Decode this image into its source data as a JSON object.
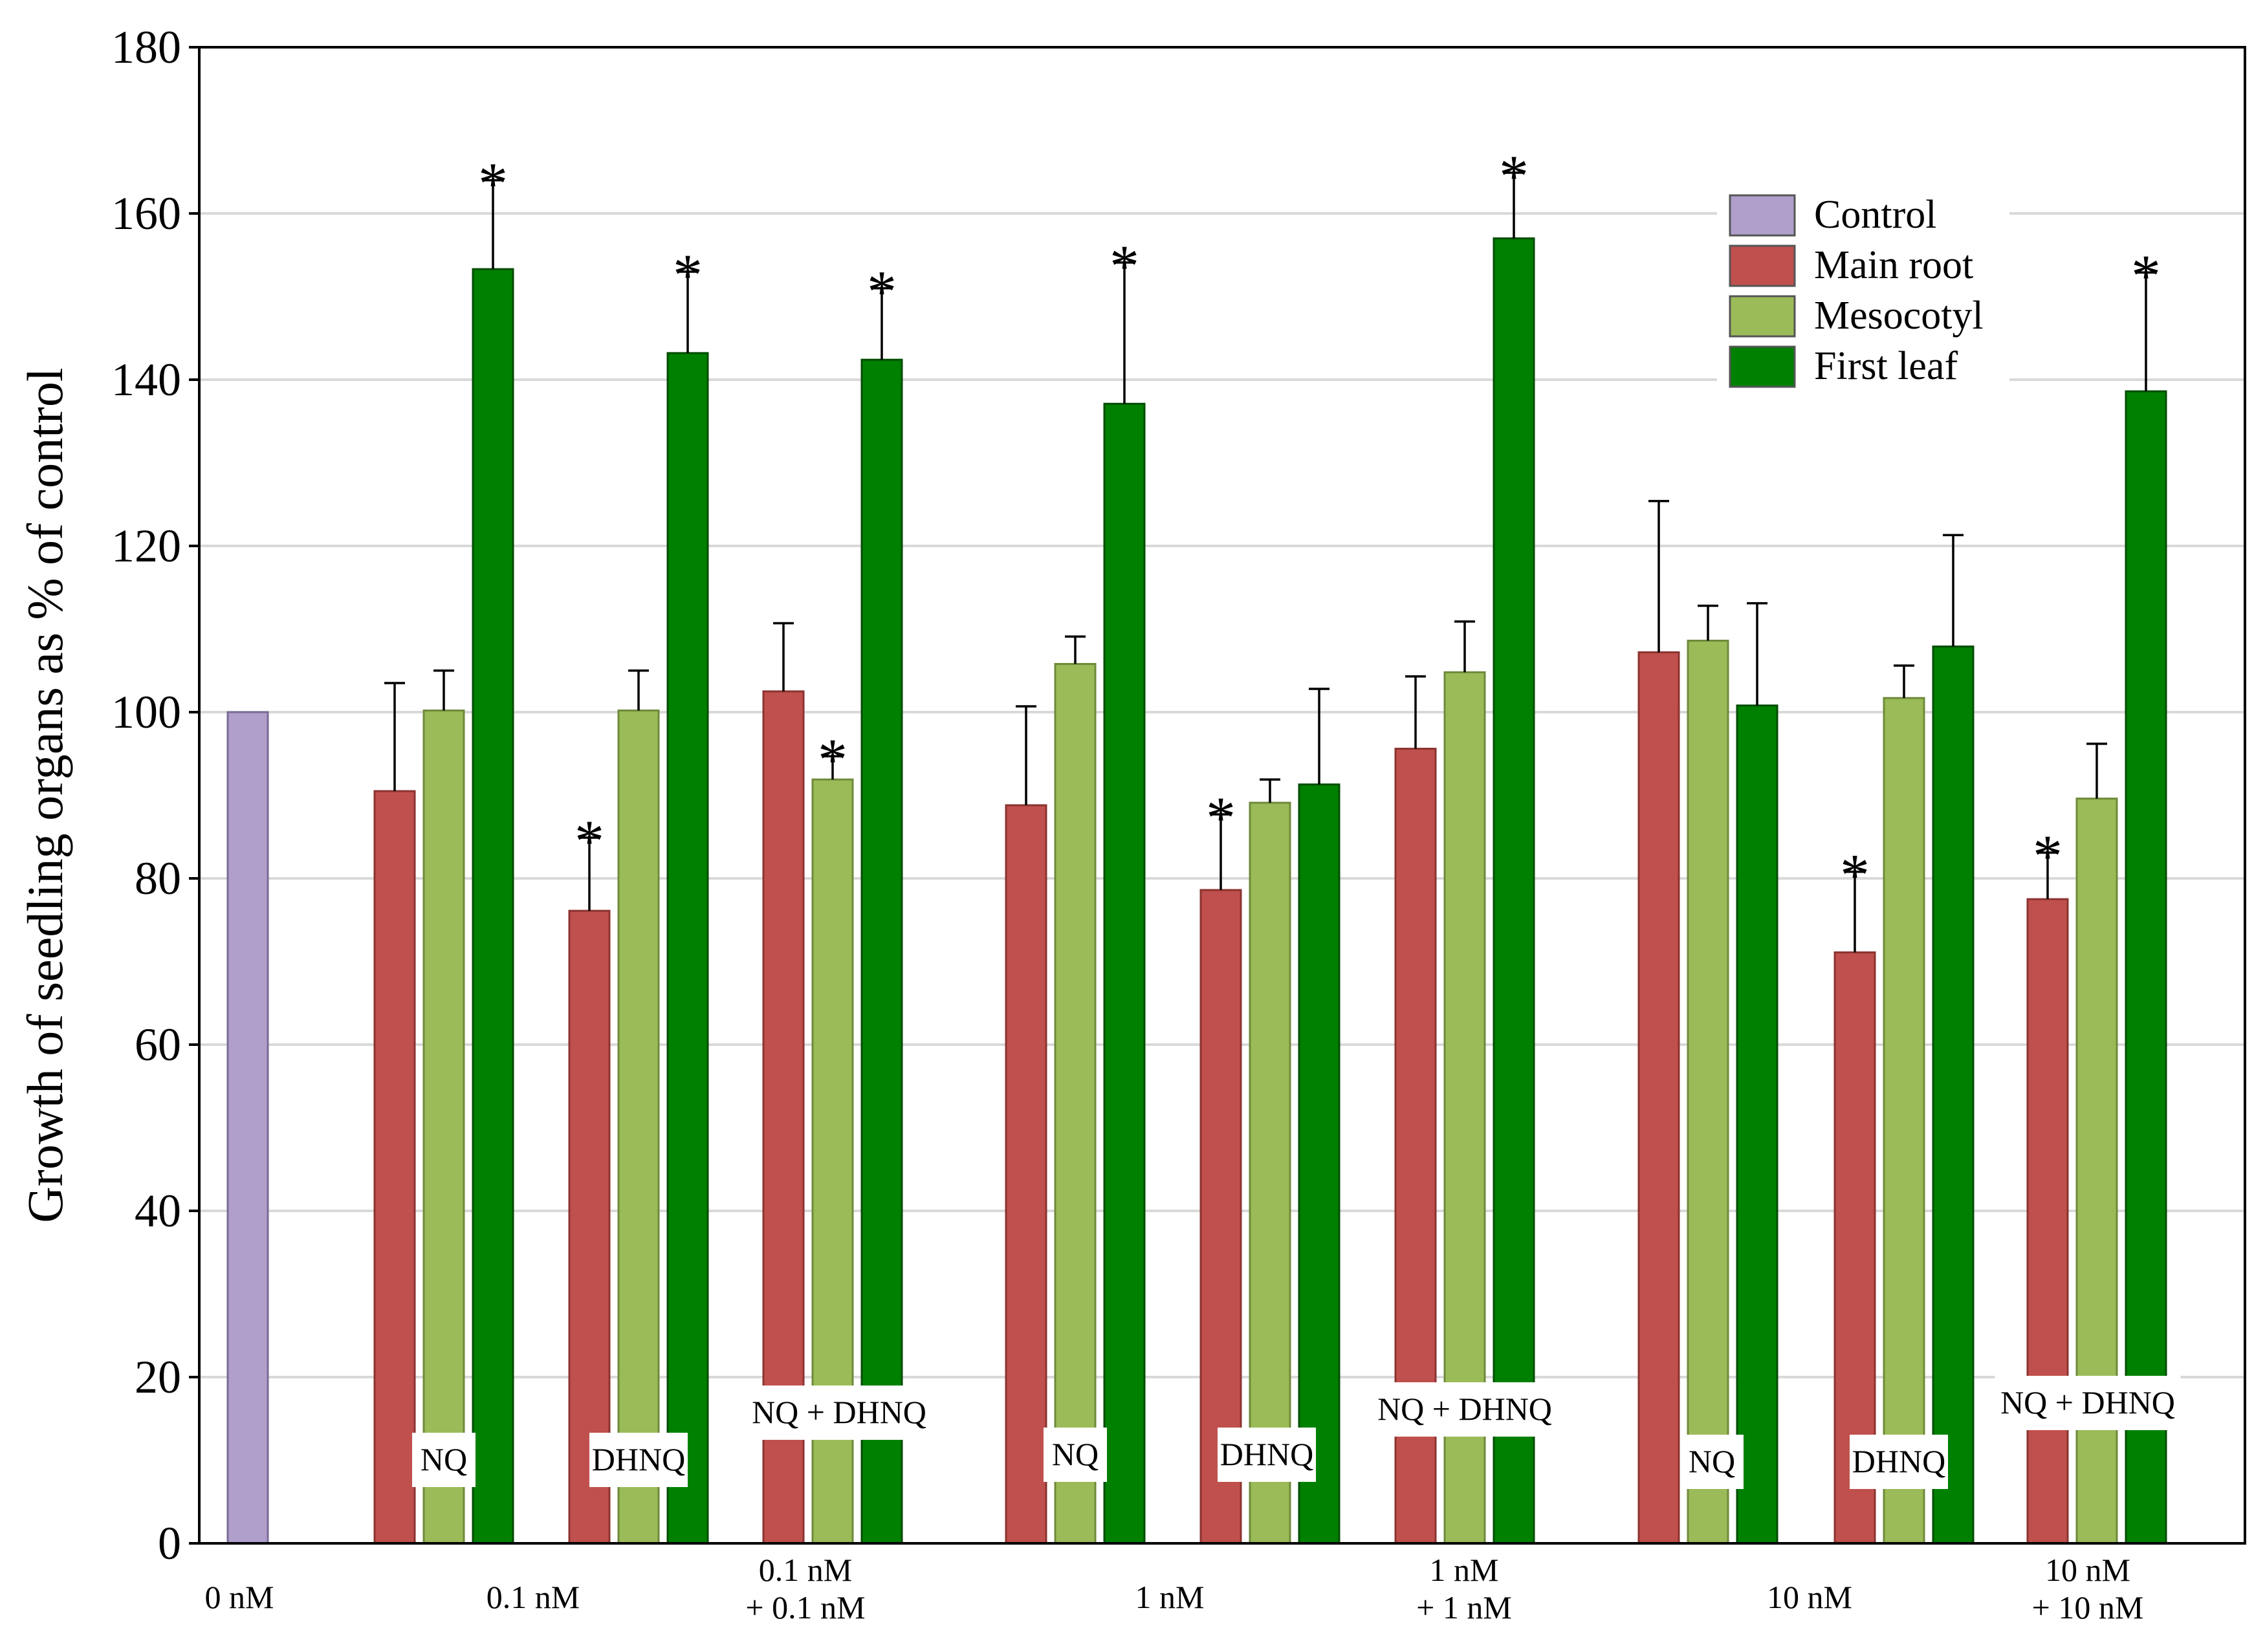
{
  "chart_data": {
    "type": "bar",
    "title": "",
    "xlabel": "",
    "ylabel": "Growth of seedling organs as % of control",
    "ylim": [
      0,
      180
    ],
    "yticks": [
      "0",
      "20",
      "40",
      "60",
      "80",
      "100",
      "120",
      "140",
      "160",
      "180"
    ],
    "grid": true,
    "legend_position": "top-right",
    "colors": {
      "Control": "#b09fcb",
      "Main root": "#c0504d",
      "Mesocotyl": "#9bbb59",
      "First leaf": "#008000"
    },
    "series_names": [
      "Control",
      "Main root",
      "Mesocotyl",
      "First leaf"
    ],
    "groups": [
      {
        "treatment": "",
        "concentration": [
          "0 nM"
        ],
        "bars": [
          {
            "series": "Control",
            "value": 100,
            "error": 0,
            "sig": false
          }
        ]
      },
      {
        "treatment": "NQ",
        "concentration": [
          "0.1 nM"
        ],
        "bars": [
          {
            "series": "Main root",
            "value": 90.5,
            "error": 13,
            "sig": false
          },
          {
            "series": "Mesocotyl",
            "value": 100.2,
            "error": 4.8,
            "sig": false
          },
          {
            "series": "First leaf",
            "value": 153.3,
            "error": 10.7,
            "sig": true
          }
        ]
      },
      {
        "treatment": "DHNQ",
        "concentration": [],
        "bars": [
          {
            "series": "Main root",
            "value": 76.1,
            "error": 8.8,
            "sig": true
          },
          {
            "series": "Mesocotyl",
            "value": 100.2,
            "error": 4.8,
            "sig": false
          },
          {
            "series": "First leaf",
            "value": 143.2,
            "error": 9.8,
            "sig": true
          }
        ]
      },
      {
        "treatment": "NQ + DHNQ",
        "concentration": [
          "0.1 nM",
          "+ 0.1 nM"
        ],
        "bars": [
          {
            "series": "Main root",
            "value": 102.5,
            "error": 8.2,
            "sig": false
          },
          {
            "series": "Mesocotyl",
            "value": 91.9,
            "error": 2.8,
            "sig": true
          },
          {
            "series": "First leaf",
            "value": 142.4,
            "error": 8.6,
            "sig": true
          }
        ]
      },
      {
        "treatment": "NQ",
        "concentration": [
          "1 nM"
        ],
        "bars": [
          {
            "series": "Main root",
            "value": 88.8,
            "error": 11.9,
            "sig": false
          },
          {
            "series": "Mesocotyl",
            "value": 105.8,
            "error": 3.3,
            "sig": false
          },
          {
            "series": "First leaf",
            "value": 137.1,
            "error": 17,
            "sig": true
          }
        ]
      },
      {
        "treatment": "DHNQ",
        "concentration": [],
        "bars": [
          {
            "series": "Main root",
            "value": 78.6,
            "error": 9.1,
            "sig": true
          },
          {
            "series": "Mesocotyl",
            "value": 89.1,
            "error": 2.8,
            "sig": false
          },
          {
            "series": "First leaf",
            "value": 91.3,
            "error": 11.5,
            "sig": false
          }
        ]
      },
      {
        "treatment": "NQ + DHNQ",
        "concentration": [
          "1 nM",
          "+ 1 nM"
        ],
        "bars": [
          {
            "series": "Main root",
            "value": 95.6,
            "error": 8.7,
            "sig": false
          },
          {
            "series": "Mesocotyl",
            "value": 104.8,
            "error": 6.1,
            "sig": false
          },
          {
            "series": "First leaf",
            "value": 157,
            "error": 7.9,
            "sig": true
          }
        ]
      },
      {
        "treatment": "NQ",
        "concentration": [
          "10 nM"
        ],
        "bars": [
          {
            "series": "Main root",
            "value": 107.2,
            "error": 18.2,
            "sig": false
          },
          {
            "series": "Mesocotyl",
            "value": 108.6,
            "error": 4.2,
            "sig": false
          },
          {
            "series": "First leaf",
            "value": 100.8,
            "error": 12.3,
            "sig": false
          }
        ]
      },
      {
        "treatment": "DHNQ",
        "concentration": [],
        "bars": [
          {
            "series": "Main root",
            "value": 71.1,
            "error": 9.7,
            "sig": true
          },
          {
            "series": "Mesocotyl",
            "value": 101.7,
            "error": 3.9,
            "sig": false
          },
          {
            "series": "First leaf",
            "value": 107.9,
            "error": 13.4,
            "sig": false
          }
        ]
      },
      {
        "treatment": "NQ + DHNQ",
        "concentration": [
          "10 nM",
          "+ 10 nM"
        ],
        "bars": [
          {
            "series": "Main root",
            "value": 77.5,
            "error": 5.6,
            "sig": true
          },
          {
            "series": "Mesocotyl",
            "value": 89.6,
            "error": 6.6,
            "sig": false
          },
          {
            "series": "First leaf",
            "value": 138.6,
            "error": 14.3,
            "sig": true
          }
        ]
      }
    ],
    "significance_marker": "*"
  }
}
